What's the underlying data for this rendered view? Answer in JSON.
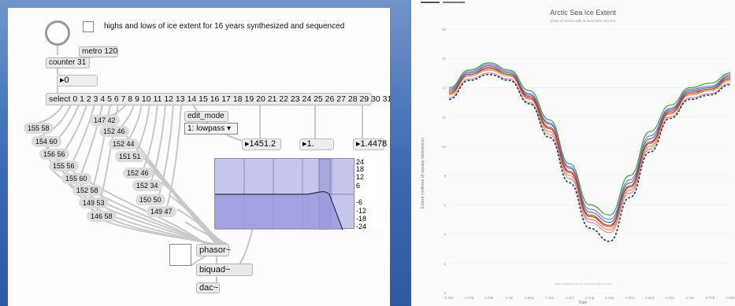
{
  "max_patch": {
    "comment": "highs and lows of ice extent for 16 years synthesized and sequenced",
    "metro": "metro 120",
    "counter": "counter 31",
    "counter_value": "0",
    "select": "select 0 1 2 3 4 5 6 7 8 9 10 11 12 13 14 15 16 17 18 19 20 21 22 23 24 25 26 27 28 29 30 31",
    "edit_mode_label": "edit_mode",
    "edit_mode_value": "1: lowpass",
    "freq_value": "1451.2",
    "gain_value": "1.",
    "q_value": "1.4478",
    "scale_labels": [
      "24",
      "18",
      "12",
      "6",
      "-6",
      "-12",
      "-18",
      "-24"
    ],
    "messages": [
      "155 58",
      "154 60",
      "156 56",
      "155 56",
      "155 60",
      "152 58",
      "149 53",
      "146 58",
      "147 42",
      "152 46",
      "152 44",
      "151 51",
      "152 46",
      "152 34",
      "150 50",
      "149 47"
    ],
    "phasor": "phasor~",
    "biquad": "biquad~",
    "dac": "dac~"
  },
  "chart": {
    "title": "Arctic Sea Ice Extent",
    "subtitle": "(Area of Ocean with at least 15% sea ice)",
    "ylabel": "Extent (millions of square kilometers)",
    "xlabel": "Date",
    "footer": "Data: National Snow and Ice Data Center",
    "colors": [
      "#1f77b4",
      "#ff7f0e",
      "#2ca02c",
      "#d62728",
      "#9467bd",
      "#8c564b",
      "#e377c2",
      "#17becf",
      "#bcbd22",
      "#7f7f7f",
      "#393b79",
      "#637939",
      "#8c6d31",
      "#843c39",
      "#7b4173",
      "#000000"
    ]
  },
  "chart_data": {
    "type": "line",
    "title": "Arctic Sea Ice Extent",
    "subtitle": "(Area of Ocean with at least 15% sea ice)",
    "xlabel": "Date",
    "ylabel": "Extent (millions of square kilometers)",
    "categories": [
      "1 Jan",
      "1 Feb",
      "1 Mar",
      "1 Apr",
      "1 May",
      "1 Jun",
      "1 Jul",
      "1 Aug",
      "1 Sep",
      "1 Oct",
      "1 Nov",
      "1 Dec",
      "1 Jan",
      "1 Feb",
      "1 Mar"
    ],
    "yticks": [
      "0",
      "2",
      "4",
      "6",
      "8",
      "10",
      "12",
      "14",
      "16",
      "18"
    ],
    "ylim": [
      0,
      18
    ],
    "series": [
      {
        "values": [
          13.8,
          15.0,
          15.5,
          15.0,
          13.5,
          11.5,
          8.5,
          5.5,
          4.8,
          7.5,
          10.5,
          12.5,
          13.8,
          14.0,
          14.8
        ],
        "style": "solid"
      },
      {
        "values": [
          13.5,
          14.8,
          15.2,
          14.8,
          13.2,
          11.0,
          8.0,
          5.0,
          4.3,
          7.0,
          10.0,
          12.2,
          13.5,
          13.8,
          14.5
        ],
        "style": "solid"
      },
      {
        "values": [
          14.0,
          15.2,
          15.7,
          15.2,
          13.8,
          11.8,
          8.8,
          6.0,
          5.3,
          8.0,
          11.0,
          12.8,
          14.0,
          14.3,
          15.0
        ],
        "style": "solid"
      },
      {
        "values": [
          13.6,
          14.9,
          15.3,
          14.9,
          13.3,
          11.2,
          8.2,
          5.2,
          4.5,
          7.2,
          10.2,
          12.3,
          13.6,
          13.9,
          14.6
        ],
        "style": "solid"
      },
      {
        "values": [
          13.9,
          15.1,
          15.6,
          15.1,
          13.6,
          11.6,
          8.6,
          5.7,
          5.0,
          7.7,
          10.7,
          12.6,
          13.9,
          14.1,
          14.9
        ],
        "style": "solid"
      },
      {
        "values": [
          13.7,
          14.9,
          15.4,
          14.9,
          13.4,
          11.3,
          8.3,
          5.3,
          4.6,
          7.3,
          10.3,
          12.4,
          13.7,
          13.9,
          14.7
        ],
        "style": "solid"
      },
      {
        "values": [
          13.3,
          14.6,
          15.0,
          14.6,
          13.0,
          10.8,
          7.8,
          4.8,
          4.1,
          6.8,
          9.8,
          12.0,
          13.3,
          13.6,
          14.3
        ],
        "style": "solid"
      },
      {
        "values": [
          13.2,
          14.5,
          14.9,
          14.5,
          12.9,
          10.6,
          7.5,
          4.4,
          3.5,
          6.5,
          9.6,
          11.9,
          13.2,
          13.5,
          14.2
        ],
        "style": "dashed"
      }
    ]
  }
}
